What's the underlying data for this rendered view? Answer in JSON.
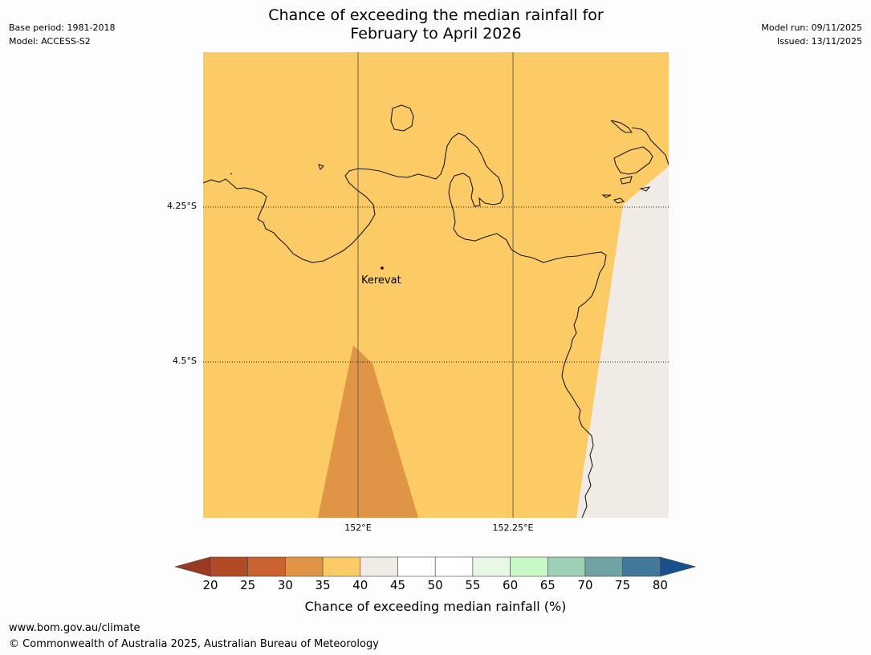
{
  "title": {
    "line1": "Chance of exceeding the median rainfall for",
    "line2": "February to April 2026"
  },
  "meta": {
    "base_period": "Base period: 1981-2018",
    "model": "Model: ACCESS-S2",
    "model_run": "Model run: 09/11/2025",
    "issued": "Issued: 13/11/2025"
  },
  "map": {
    "place_label": "Kerevat",
    "lat_labels": [
      "4.25°S",
      "4.5°S"
    ],
    "lon_labels": [
      "152°E",
      "152.25°E"
    ]
  },
  "colorbar": {
    "title": "Chance of exceeding median rainfall (%)",
    "ticks": [
      "20",
      "25",
      "30",
      "35",
      "40",
      "45",
      "50",
      "55",
      "60",
      "65",
      "70",
      "75",
      "80"
    ],
    "colors": [
      "#b14a27",
      "#c9622f",
      "#e09445",
      "#fdcb66",
      "#f1ebe5",
      "#ffffff",
      "#ffffff",
      "#e8f7e6",
      "#c8f8c6",
      "#9cd0b7",
      "#6fa3a4",
      "#42799a"
    ],
    "under_color": "#9b3a24",
    "over_color": "#18508c"
  },
  "legend_fill_colors": {
    "bg_yellow": "#fdcb66",
    "orange": "#e09445",
    "neutral": "#f1ebe5"
  },
  "footer": {
    "url": "www.bom.gov.au/climate",
    "copyright": "© Commonwealth of Australia 2025, Australian Bureau of Meteorology"
  }
}
